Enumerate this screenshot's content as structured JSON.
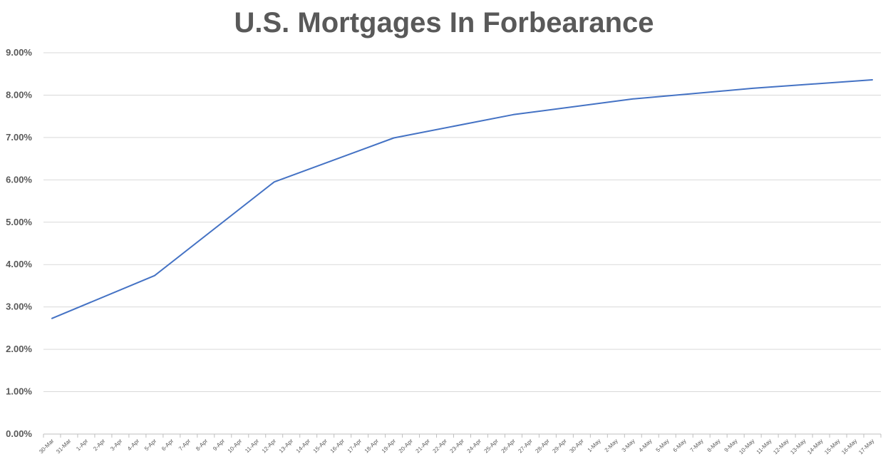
{
  "chart_data": {
    "type": "line",
    "title": "U.S. Mortgages In Forbearance",
    "xlabel": "",
    "ylabel": "",
    "ylim": [
      0,
      9
    ],
    "y_ticks": [
      "0.00%",
      "1.00%",
      "2.00%",
      "3.00%",
      "4.00%",
      "5.00%",
      "6.00%",
      "7.00%",
      "8.00%",
      "9.00%"
    ],
    "grid": true,
    "x": [
      "30-Mar",
      "31-Mar",
      "1-Apr",
      "2-Apr",
      "3-Apr",
      "4-Apr",
      "5-Apr",
      "6-Apr",
      "7-Apr",
      "8-Apr",
      "9-Apr",
      "10-Apr",
      "11-Apr",
      "12-Apr",
      "13-Apr",
      "14-Apr",
      "15-Apr",
      "16-Apr",
      "17-Apr",
      "18-Apr",
      "19-Apr",
      "20-Apr",
      "21-Apr",
      "22-Apr",
      "23-Apr",
      "24-Apr",
      "25-Apr",
      "26-Apr",
      "27-Apr",
      "28-Apr",
      "29-Apr",
      "30-Apr",
      "1-May",
      "2-May",
      "3-May",
      "4-May",
      "5-May",
      "6-May",
      "7-May",
      "8-May",
      "9-May",
      "10-May",
      "11-May",
      "12-May",
      "13-May",
      "14-May",
      "15-May",
      "16-May",
      "17-May"
    ],
    "series": [
      {
        "name": "",
        "color": "#4472C4",
        "points": [
          {
            "x": "30-Mar",
            "y": 2.73
          },
          {
            "x": "5-Apr",
            "y": 3.74
          },
          {
            "x": "12-Apr",
            "y": 5.95
          },
          {
            "x": "19-Apr",
            "y": 6.99
          },
          {
            "x": "26-Apr",
            "y": 7.54
          },
          {
            "x": "3-May",
            "y": 7.91
          },
          {
            "x": "10-May",
            "y": 8.16
          },
          {
            "x": "17-May",
            "y": 8.36
          }
        ]
      }
    ]
  }
}
